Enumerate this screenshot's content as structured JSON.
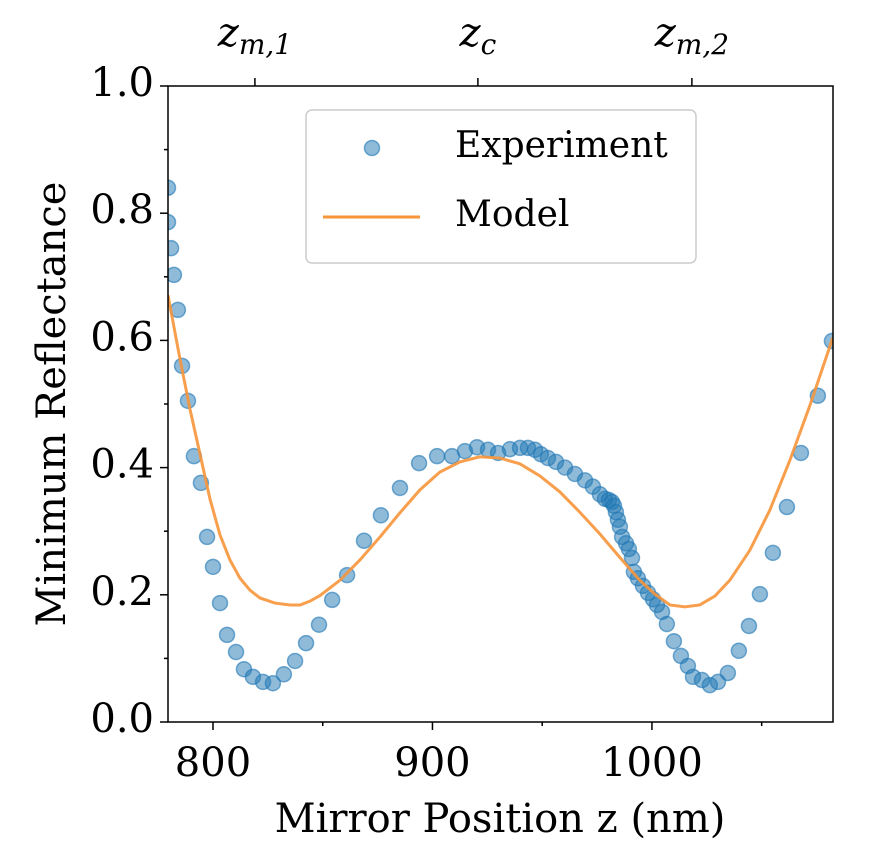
{
  "chart_data": {
    "type": "scatter",
    "xlabel": "Mirror Position z (nm)",
    "ylabel": "Minimum Reflectance",
    "xlim": [
      779.5,
      1082.5
    ],
    "ylim": [
      0,
      1
    ],
    "xticks": [
      800,
      900,
      1000
    ],
    "xminorticks": [
      850,
      950,
      1050
    ],
    "yticks": [
      {
        "value": 0,
        "label": "0.0"
      },
      0.2,
      0.4,
      0.6,
      0.8,
      {
        "value": 1,
        "label": "1.0"
      }
    ],
    "yminorticks": [
      0.1,
      0.3,
      0.5,
      0.7,
      0.9
    ],
    "x2ticks": [
      {
        "value": 819.1,
        "label": "z",
        "subscript": "m,1"
      },
      {
        "value": 920.7,
        "label": "z",
        "subscript": "c"
      },
      {
        "value": 1018.2,
        "label": "z",
        "subscript": "m,2"
      }
    ],
    "legend": "upper center",
    "series": [
      {
        "name": "Experiment",
        "type": "scatter",
        "color": "#1f77b4",
        "x": [
          779.5,
          779.5,
          780.9,
          782.2,
          784,
          785.9,
          788.6,
          791.3,
          794.5,
          797.3,
          800,
          803.2,
          806.4,
          810.5,
          814.1,
          818.2,
          822.8,
          827.3,
          832.3,
          837.4,
          842.4,
          848.3,
          854.3,
          861.1,
          868.8,
          876.5,
          885.2,
          893.9,
          902.1,
          908.9,
          914.8,
          920.3,
          925.3,
          929.9,
          935.3,
          939.9,
          943.5,
          946.7,
          949.4,
          952.6,
          956.3,
          960.4,
          964.9,
          969.5,
          973.1,
          976.3,
          978.6,
          980.4,
          981.8,
          982.7,
          983.6,
          984.5,
          985.4,
          986.4,
          988.2,
          989.5,
          990.9,
          991.8,
          993.6,
          995.9,
          998.2,
          1000.5,
          1002.3,
          1004.6,
          1006.8,
          1010,
          1013.2,
          1016.4,
          1018.7,
          1022.8,
          1026.4,
          1030.1,
          1034.6,
          1039.6,
          1044.2,
          1049.2,
          1055.1,
          1061.5,
          1067.9,
          1075.6,
          1082
        ],
        "values": [
          0.84,
          0.786,
          0.745,
          0.703,
          0.648,
          0.56,
          0.505,
          0.418,
          0.376,
          0.291,
          0.244,
          0.187,
          0.137,
          0.11,
          0.083,
          0.071,
          0.063,
          0.061,
          0.075,
          0.096,
          0.124,
          0.153,
          0.192,
          0.231,
          0.285,
          0.325,
          0.368,
          0.407,
          0.418,
          0.418,
          0.426,
          0.432,
          0.428,
          0.423,
          0.429,
          0.431,
          0.431,
          0.428,
          0.421,
          0.415,
          0.409,
          0.4,
          0.39,
          0.38,
          0.37,
          0.358,
          0.351,
          0.349,
          0.346,
          0.34,
          0.33,
          0.318,
          0.307,
          0.291,
          0.281,
          0.272,
          0.258,
          0.236,
          0.226,
          0.214,
          0.203,
          0.193,
          0.184,
          0.173,
          0.154,
          0.127,
          0.104,
          0.088,
          0.071,
          0.066,
          0.058,
          0.063,
          0.077,
          0.112,
          0.151,
          0.201,
          0.266,
          0.338,
          0.423,
          0.513,
          0.599
        ]
      },
      {
        "name": "Model",
        "type": "line",
        "color": "#f7953a",
        "x": [
          779.5,
          785,
          789.5,
          794.1,
          798.6,
          803.2,
          807.7,
          812.3,
          816.9,
          821.4,
          828.2,
          835.1,
          839.7,
          844.2,
          848.8,
          857.9,
          867,
          876.1,
          885.2,
          894.3,
          903.4,
          912.5,
          921.6,
          930.7,
          939.8,
          948.9,
          958,
          967.1,
          976.2,
          985.3,
          994.4,
          1001.4,
          1008.2,
          1015,
          1021.8,
          1028.7,
          1035.5,
          1044.6,
          1053.7,
          1062.8,
          1071.9,
          1082.4
        ],
        "values": [
          0.671,
          0.57,
          0.492,
          0.421,
          0.351,
          0.294,
          0.255,
          0.226,
          0.207,
          0.195,
          0.187,
          0.184,
          0.184,
          0.19,
          0.199,
          0.223,
          0.255,
          0.291,
          0.329,
          0.365,
          0.393,
          0.409,
          0.417,
          0.415,
          0.406,
          0.387,
          0.362,
          0.33,
          0.296,
          0.259,
          0.223,
          0.201,
          0.184,
          0.181,
          0.184,
          0.198,
          0.223,
          0.27,
          0.333,
          0.411,
          0.497,
          0.604
        ]
      }
    ]
  }
}
